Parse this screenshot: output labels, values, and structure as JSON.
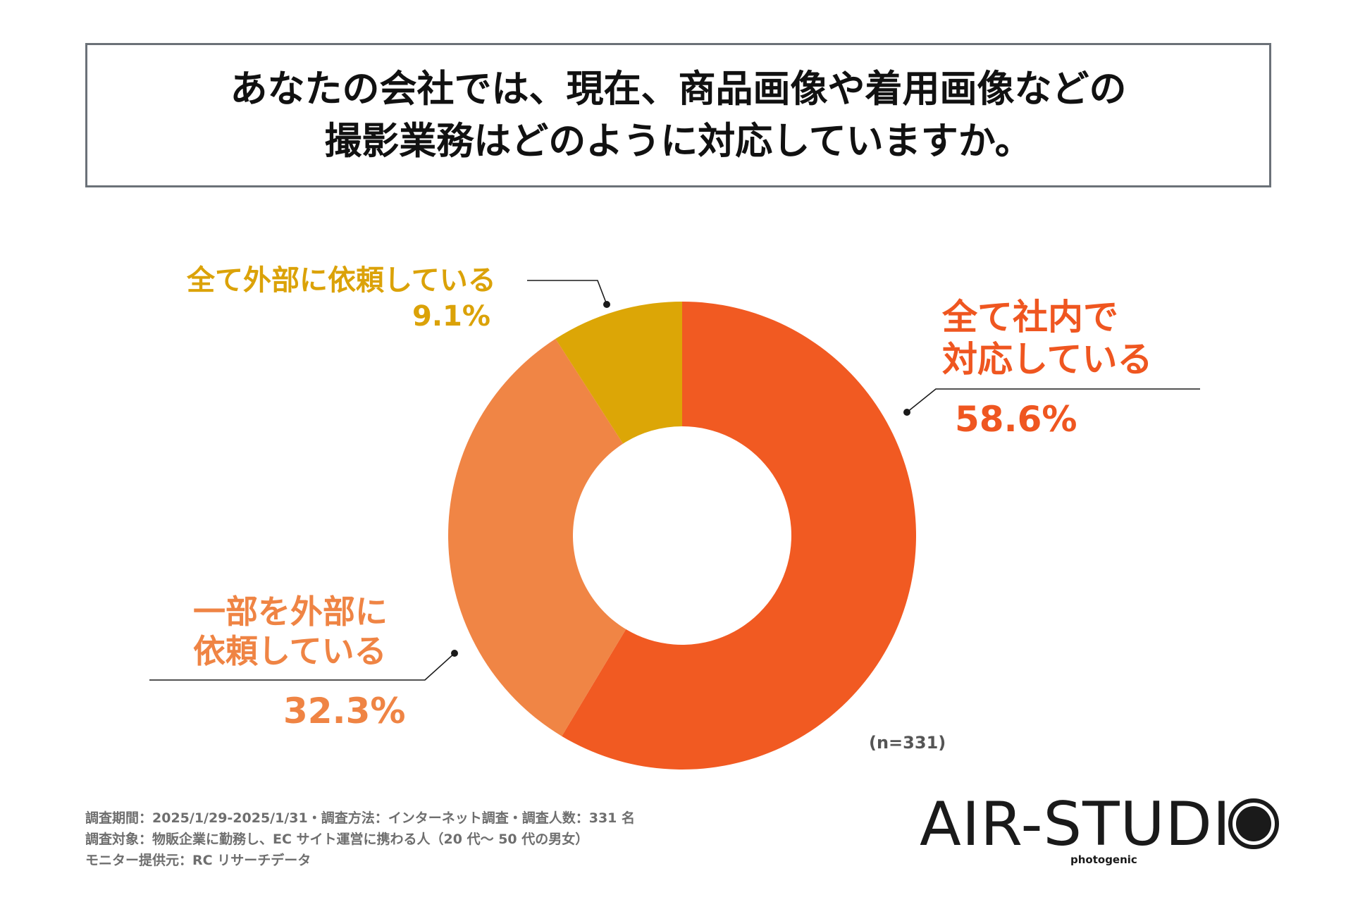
{
  "title": {
    "line1": "あなたの会社では、現在、商品画像や着用画像などの",
    "line2": "撮影業務はどのように対応していますか。"
  },
  "chart_data": {
    "type": "pie",
    "donut": true,
    "start_angle": "top",
    "direction": "clockwise",
    "slices": [
      {
        "label_lines": [
          "全て社内で",
          "対応している"
        ],
        "value": 58.6,
        "value_text": "58.6%",
        "color": "#f15a22"
      },
      {
        "label_lines": [
          "一部を外部に",
          "依頼している"
        ],
        "value": 32.3,
        "value_text": "32.3%",
        "color": "#f08545"
      },
      {
        "label_lines": [
          "全て外部に依頼している"
        ],
        "value": 9.1,
        "value_text": "9.1%",
        "color": "#dca606"
      }
    ],
    "n_label": "(n=331)"
  },
  "footer": {
    "line1": "調査期間：2025/1/29-2025/1/31・調査方法：インターネット調査・調査人数：331 名",
    "line2": "調査対象：物販企業に勤務し、EC サイト運営に携わる人（20 代〜 50 代の男女）",
    "line3": "モニター提供元：RC リサーチデータ"
  },
  "logo": {
    "text": "AIR-STUDI",
    "sub": "photogenic",
    "ring_color": "#1a1a1a"
  }
}
